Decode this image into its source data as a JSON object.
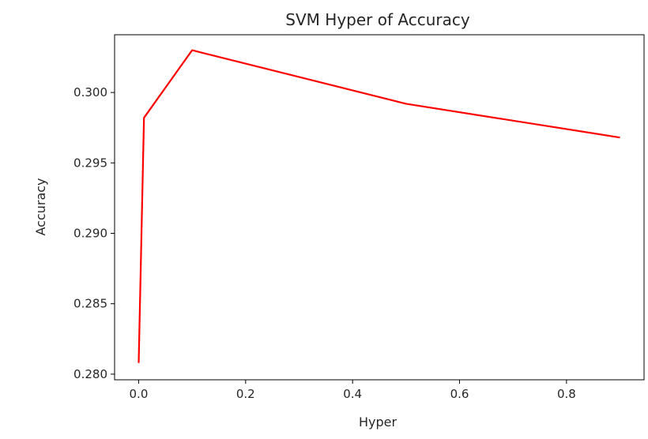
{
  "chart_data": {
    "type": "line",
    "title": "SVM Hyper of Accuracy",
    "xlabel": "Hyper",
    "ylabel": "Accuracy",
    "xlim": [
      -0.045,
      0.945
    ],
    "ylim": [
      0.2796,
      0.3041
    ],
    "xticks": [
      0.0,
      0.2,
      0.4,
      0.6,
      0.8
    ],
    "xtick_labels": [
      "0.0",
      "0.2",
      "0.4",
      "0.6",
      "0.8"
    ],
    "yticks": [
      0.28,
      0.285,
      0.29,
      0.295,
      0.3
    ],
    "ytick_labels": [
      "0.280",
      "0.285",
      "0.290",
      "0.295",
      "0.300"
    ],
    "grid": false,
    "series": [
      {
        "color": "#ff0000",
        "x": [
          0.0001,
          0.01,
          0.1,
          0.5,
          0.9
        ],
        "y": [
          0.2808,
          0.2982,
          0.303,
          0.2992,
          0.2968
        ]
      }
    ]
  }
}
